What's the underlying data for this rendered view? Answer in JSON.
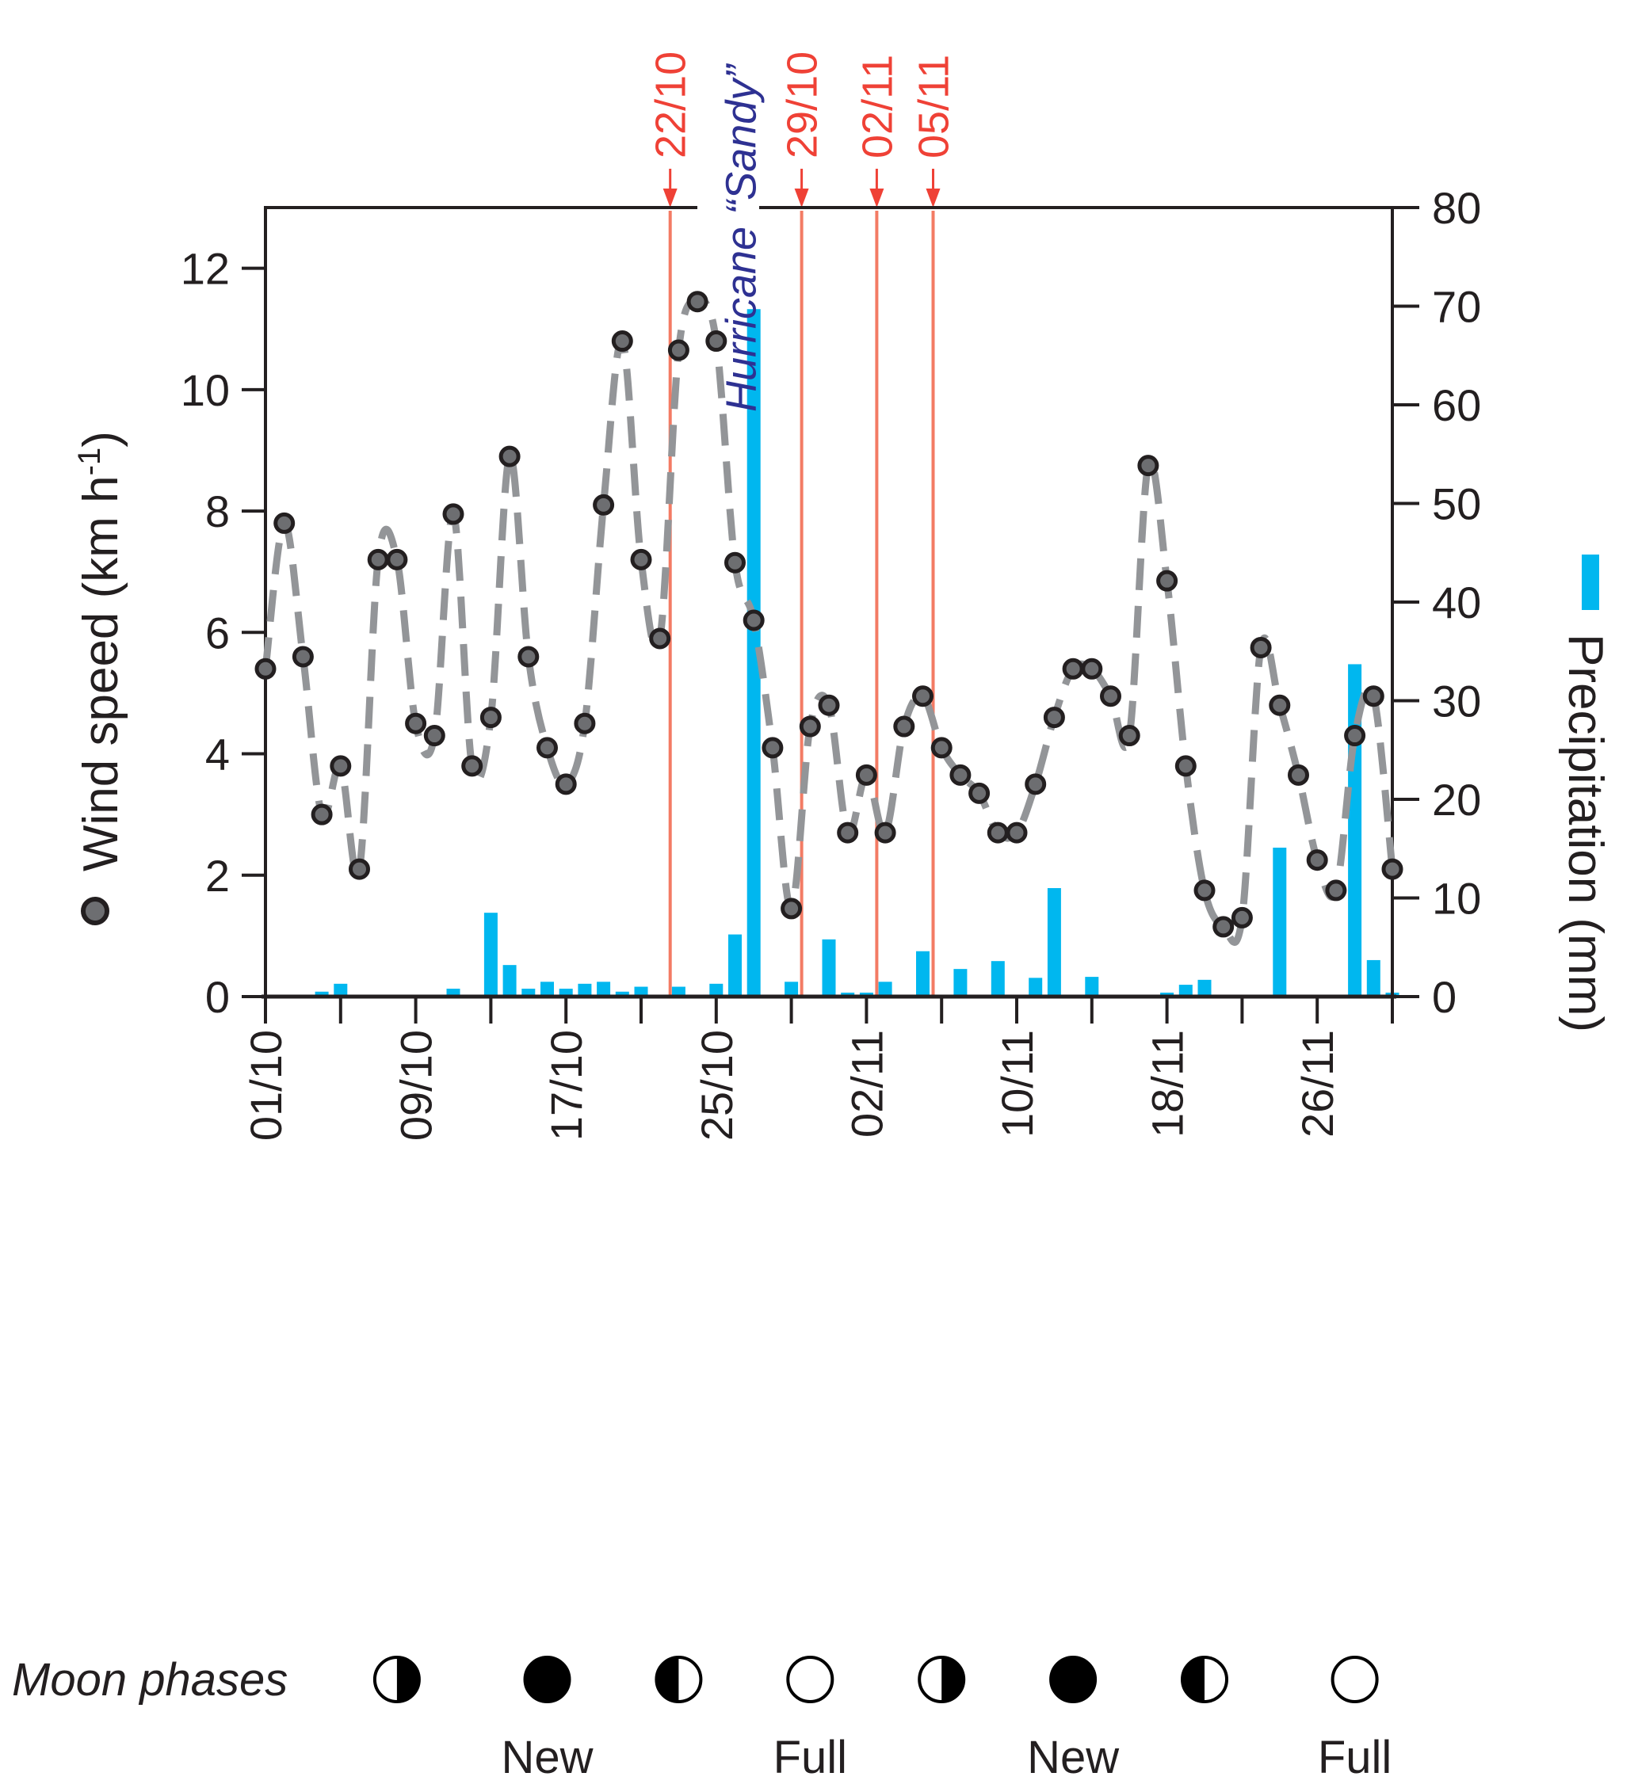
{
  "chart_data": {
    "type": "line+bar",
    "title": "",
    "xlabel": "",
    "ylabel_left": "Wind speed (km h-1)",
    "ylabel_left_unit_superscript": "-1",
    "ylabel_right": "Precipitation (mm)",
    "ylim_left": [
      0,
      13
    ],
    "yticks_left": [
      0,
      2,
      4,
      6,
      8,
      10,
      12
    ],
    "ylim_right": [
      0,
      80
    ],
    "yticks_right": [
      0,
      10,
      20,
      30,
      40,
      50,
      60,
      70,
      80
    ],
    "x_start_date": "01/10",
    "x_range_days": [
      0,
      60
    ],
    "x_major_tick_labels": [
      {
        "day": 0,
        "label": "01/10"
      },
      {
        "day": 8,
        "label": "09/10"
      },
      {
        "day": 16,
        "label": "17/10"
      },
      {
        "day": 24,
        "label": "25/10"
      },
      {
        "day": 32,
        "label": "02/11"
      },
      {
        "day": 40,
        "label": "10/11"
      },
      {
        "day": 48,
        "label": "18/11"
      },
      {
        "day": 56,
        "label": "26/11"
      }
    ],
    "x_minor_tick_days": [
      0,
      4,
      8,
      12,
      16,
      20,
      24,
      28,
      32,
      36,
      40,
      44,
      48,
      52,
      56,
      60
    ],
    "grid": false,
    "series": [
      {
        "name": "Wind speed",
        "type": "line",
        "axis": "left",
        "style": "dashed line with circle markers",
        "color": "#939598",
        "marker_fill": "#6d6e71",
        "marker_edge": "#231f20",
        "days": [
          0,
          1,
          2,
          3,
          4,
          5,
          6,
          7,
          8,
          9,
          10,
          11,
          12,
          13,
          14,
          15,
          16,
          17,
          18,
          19,
          20,
          21,
          22,
          23,
          24,
          25,
          26,
          27,
          28,
          29,
          30,
          31,
          32,
          33,
          34,
          35,
          36,
          37,
          38,
          39,
          40,
          41,
          42,
          43,
          44,
          45,
          46,
          47,
          48,
          49,
          50,
          51,
          52,
          53,
          54,
          55,
          56,
          57,
          58,
          59,
          60
        ],
        "values": [
          5.4,
          7.8,
          5.6,
          3.0,
          3.8,
          2.1,
          7.2,
          7.2,
          4.5,
          4.3,
          7.95,
          3.8,
          4.6,
          8.9,
          5.6,
          4.1,
          3.5,
          4.5,
          8.1,
          10.8,
          7.2,
          5.9,
          10.65,
          11.45,
          10.8,
          7.15,
          6.2,
          4.1,
          1.45,
          4.45,
          4.8,
          2.7,
          3.65,
          2.7,
          4.45,
          4.95,
          4.1,
          3.65,
          3.35,
          2.7,
          2.7,
          3.5,
          4.6,
          5.4,
          5.4,
          4.95,
          4.3,
          8.75,
          6.85,
          3.8,
          1.75,
          1.15,
          1.3,
          5.75,
          4.8,
          3.65,
          2.25,
          1.75,
          4.3,
          4.95,
          2.1
        ]
      },
      {
        "name": "Precipitation",
        "type": "bar",
        "axis": "right",
        "color": "#00b7ef",
        "days": [
          3,
          4,
          10,
          12,
          13,
          14,
          15,
          16,
          17,
          18,
          19,
          20,
          22,
          24,
          25,
          26,
          28,
          30,
          31,
          32,
          33,
          35,
          37,
          39,
          41,
          42,
          44,
          48,
          49,
          50,
          54,
          58,
          59,
          60
        ],
        "values": [
          0.5,
          1.3,
          0.8,
          8.5,
          3.2,
          0.8,
          1.5,
          0.8,
          1.3,
          1.5,
          0.5,
          1.0,
          1.0,
          1.3,
          6.3,
          69.7,
          1.5,
          5.8,
          0.4,
          0.4,
          1.5,
          4.6,
          2.8,
          3.6,
          1.9,
          11.0,
          2.0,
          0.4,
          1.2,
          1.7,
          15.1,
          33.7,
          3.7,
          0.4
        ]
      }
    ],
    "annotations": {
      "event_lines": [
        {
          "day": 21,
          "label": "22/10"
        },
        {
          "day": 28,
          "label": "29/10"
        },
        {
          "day": 32,
          "label": "02/11"
        },
        {
          "day": 35,
          "label": "05/11"
        }
      ],
      "event_color": "#ef4136",
      "event_line_color": "#f37b64",
      "hurricane": {
        "label": "Hurricane “Sandy”",
        "day": 25.5,
        "color": "#2e3192"
      }
    },
    "moon_phases": {
      "title": "Moon phases",
      "phases": [
        {
          "day": 7,
          "phase": "last-quarter",
          "label": ""
        },
        {
          "day": 15,
          "phase": "new",
          "label": "New"
        },
        {
          "day": 22,
          "phase": "first-quarter",
          "label": ""
        },
        {
          "day": 29,
          "phase": "full",
          "label": "Full"
        },
        {
          "day": 36,
          "phase": "last-quarter",
          "label": ""
        },
        {
          "day": 43,
          "phase": "new",
          "label": "New"
        },
        {
          "day": 50,
          "phase": "first-quarter",
          "label": ""
        },
        {
          "day": 58,
          "phase": "full",
          "label": "Full"
        }
      ]
    },
    "legend": {
      "wind_marker": "circle",
      "precip_marker": "square",
      "placement": "axis-titles"
    }
  }
}
